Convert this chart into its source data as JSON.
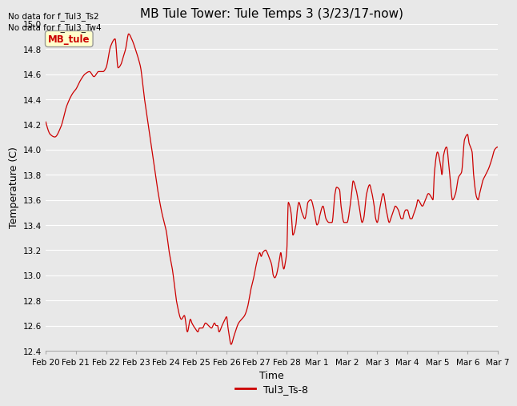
{
  "title": "MB Tule Tower: Tule Temps 3 (3/23/17-now)",
  "xlabel": "Time",
  "ylabel": "Temperature (C)",
  "no_data_text_1": "No data for f_Tul3_Ts2",
  "no_data_text_2": "No data for f_Tul3_Tw4",
  "legend_box_label": "MB_tule",
  "legend_label": "Tul3_Ts-8",
  "line_color": "#cc0000",
  "ylim": [
    12.4,
    15.0
  ],
  "bg_color": "#e8e8e8",
  "tick_labels": [
    "Feb 20",
    "Feb 21",
    "Feb 22",
    "Feb 23",
    "Feb 24",
    "Feb 25",
    "Feb 26",
    "Feb 27",
    "Feb 28",
    "Mar 1",
    "Mar 2",
    "Mar 3",
    "Mar 4",
    "Mar 5",
    "Mar 6",
    "Mar 7"
  ],
  "grid_color": "#ffffff",
  "spine_color": "#aaaaaa",
  "title_fontsize": 11,
  "axis_fontsize": 9,
  "tick_fontsize": 7.5
}
